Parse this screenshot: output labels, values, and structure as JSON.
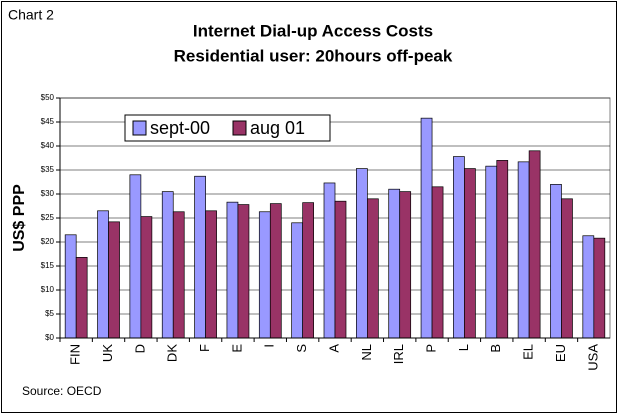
{
  "chart_data": {
    "type": "bar",
    "label": "Chart 2",
    "title": "Internet Dial-up Access Costs",
    "subtitle": "Residential user: 20hours off-peak",
    "ylabel": "US$ PPP",
    "source": "Source: OECD",
    "categories": [
      "FIN",
      "UK",
      "D",
      "DK",
      "F",
      "E",
      "I",
      "S",
      "A",
      "NL",
      "IRL",
      "P",
      "L",
      "B",
      "EL",
      "EU",
      "USA"
    ],
    "series": [
      {
        "name": "sept-00",
        "color": "#9999ff",
        "values": [
          21.5,
          26.5,
          34,
          30.5,
          33.7,
          28.3,
          26.3,
          24,
          32.3,
          35.3,
          31,
          45.8,
          37.8,
          35.8,
          36.7,
          32,
          21.3
        ]
      },
      {
        "name": "aug 01",
        "color": "#993366",
        "values": [
          16.8,
          24.2,
          25.3,
          26.3,
          26.5,
          27.8,
          28,
          28.2,
          28.5,
          29,
          30.5,
          31.5,
          35.3,
          37,
          39,
          29,
          20.8
        ]
      }
    ],
    "ylim": [
      0,
      50
    ],
    "yticks": [
      {
        "value": 0,
        "label": "$0"
      },
      {
        "value": 5,
        "label": "$5"
      },
      {
        "value": 10,
        "label": "$10"
      },
      {
        "value": 15,
        "label": "$15"
      },
      {
        "value": 20,
        "label": "$20"
      },
      {
        "value": 25,
        "label": "$25"
      },
      {
        "value": 30,
        "label": "$30"
      },
      {
        "value": 35,
        "label": "$35"
      },
      {
        "value": 40,
        "label": "$40"
      },
      {
        "value": 45,
        "label": "$45"
      },
      {
        "value": 50,
        "label": "$50"
      }
    ],
    "grid": true
  }
}
